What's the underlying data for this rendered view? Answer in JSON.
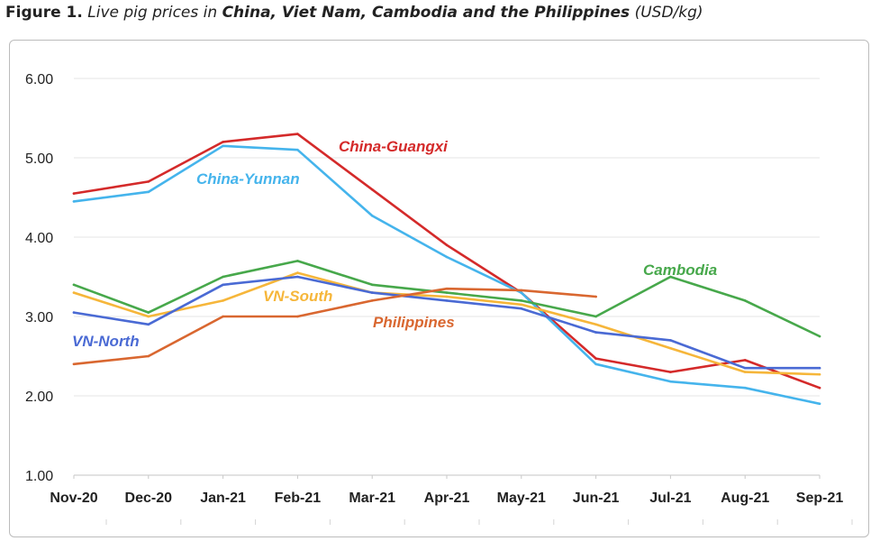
{
  "caption": {
    "number": "Figure 1.",
    "prefix": "Live pig prices in",
    "subject": "China, Viet Nam, Cambodia and the Philippines",
    "unit": "(USD/kg)"
  },
  "chart_data": {
    "type": "line",
    "title": "",
    "xlabel": "",
    "ylabel": "",
    "categories": [
      "Nov-20",
      "Dec-20",
      "Jan-21",
      "Feb-21",
      "Mar-21",
      "Apr-21",
      "May-21",
      "Jun-21",
      "Jul-21",
      "Aug-21",
      "Sep-21"
    ],
    "ylim": [
      1.0,
      6.0
    ],
    "yticks": [
      "1.00",
      "2.00",
      "3.00",
      "4.00",
      "5.00",
      "6.00"
    ],
    "grid": true,
    "series": [
      {
        "name": "China-Guangxi",
        "color": "#d42a2a",
        "values": [
          4.55,
          4.7,
          5.2,
          5.3,
          4.6,
          3.9,
          3.3,
          2.47,
          2.3,
          2.45,
          2.1
        ]
      },
      {
        "name": "China-Yunnan",
        "color": "#45b4ec",
        "values": [
          4.45,
          4.57,
          5.15,
          5.1,
          4.27,
          3.75,
          3.3,
          2.4,
          2.18,
          2.1,
          1.9
        ]
      },
      {
        "name": "Cambodia",
        "color": "#47a84b",
        "values": [
          3.4,
          3.05,
          3.5,
          3.7,
          3.4,
          3.3,
          3.2,
          3.0,
          3.5,
          3.2,
          2.75
        ]
      },
      {
        "name": "VN-South",
        "color": "#f6b63a",
        "values": [
          3.3,
          3.0,
          3.2,
          3.55,
          3.3,
          3.25,
          3.15,
          2.9,
          2.6,
          2.3,
          2.27
        ]
      },
      {
        "name": "VN-North",
        "color": "#4a6ad4",
        "values": [
          3.05,
          2.9,
          3.4,
          3.5,
          3.3,
          3.2,
          3.1,
          2.8,
          2.7,
          2.35,
          2.35
        ]
      },
      {
        "name": "Philippines",
        "color": "#d96730",
        "values": [
          2.4,
          2.5,
          3.0,
          3.0,
          3.2,
          3.35,
          3.33,
          3.25,
          null,
          null,
          null
        ]
      }
    ]
  }
}
